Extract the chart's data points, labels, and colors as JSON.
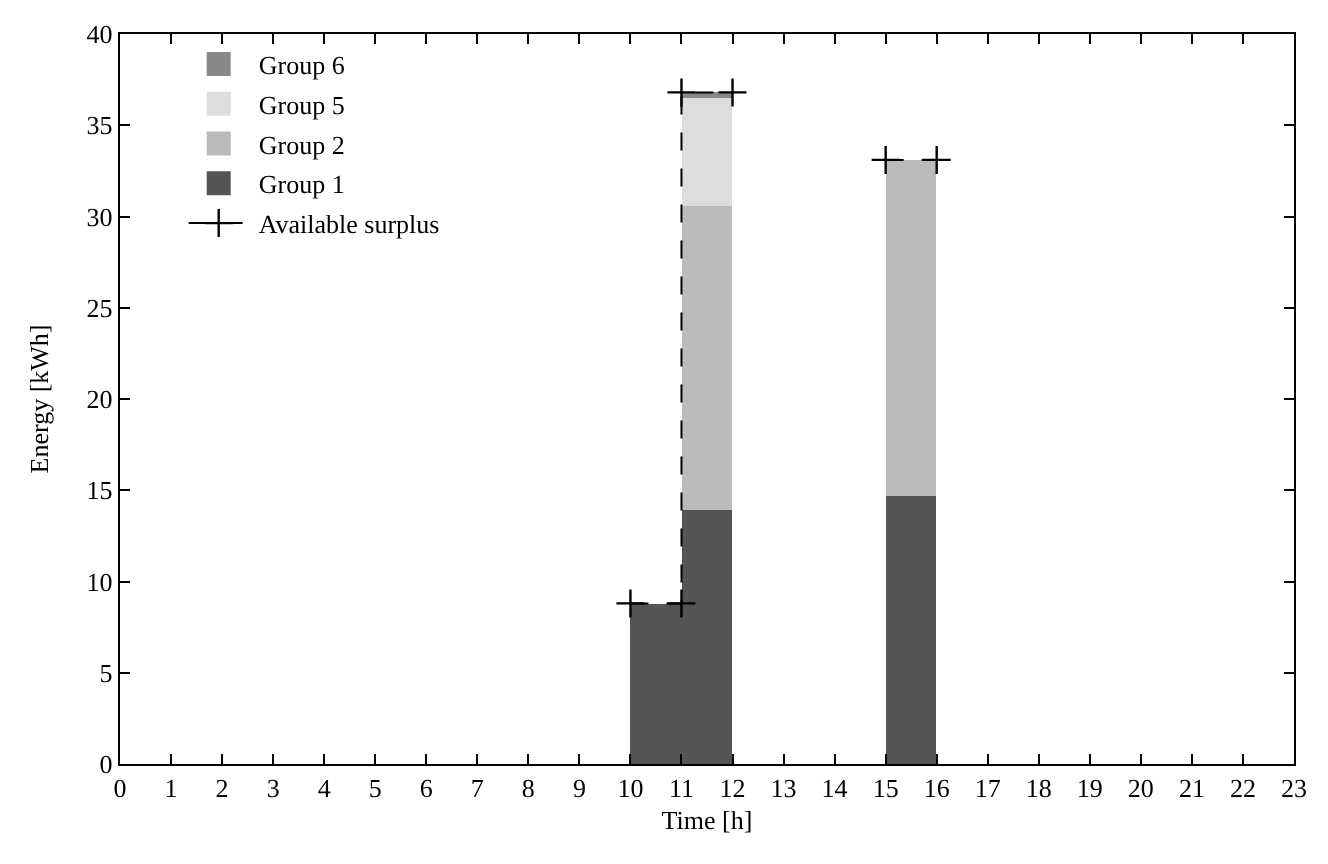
{
  "chart_data": {
    "type": "bar",
    "stacked": true,
    "xlabel": "Time [h]",
    "ylabel": "Energy [kWh]",
    "xlim": [
      0,
      23
    ],
    "xticks": [
      0,
      1,
      2,
      3,
      4,
      5,
      6,
      7,
      8,
      9,
      10,
      11,
      12,
      13,
      14,
      15,
      16,
      17,
      18,
      19,
      20,
      21,
      22,
      23
    ],
    "ylim": [
      0,
      40
    ],
    "yticks": [
      0,
      5,
      10,
      15,
      20,
      25,
      30,
      35,
      40
    ],
    "legend": "top left",
    "x": [
      10.5,
      11.5,
      15.5
    ],
    "series": [
      {
        "name": "Group 1",
        "color": "#555555",
        "values": [
          8.8,
          13.9,
          14.7
        ]
      },
      {
        "name": "Group 2",
        "color": "#bbbbbb",
        "values": [
          null,
          16.7,
          18.4
        ]
      },
      {
        "name": "Group 5",
        "color": "#dddddd",
        "values": [
          null,
          5.9,
          null
        ]
      },
      {
        "name": "Group 6",
        "color": "#888888",
        "values": [
          null,
          0.3,
          null
        ]
      },
      {
        "name": "Available surplus",
        "type": "line",
        "color": "#000000",
        "line_style": "dashed",
        "marker": "cross",
        "x": [
          10,
          11,
          11,
          12,
          13,
          15,
          16
        ],
        "values": [
          8.8,
          8.8,
          36.8,
          36.8,
          null,
          33.1,
          33.1
        ]
      }
    ]
  }
}
